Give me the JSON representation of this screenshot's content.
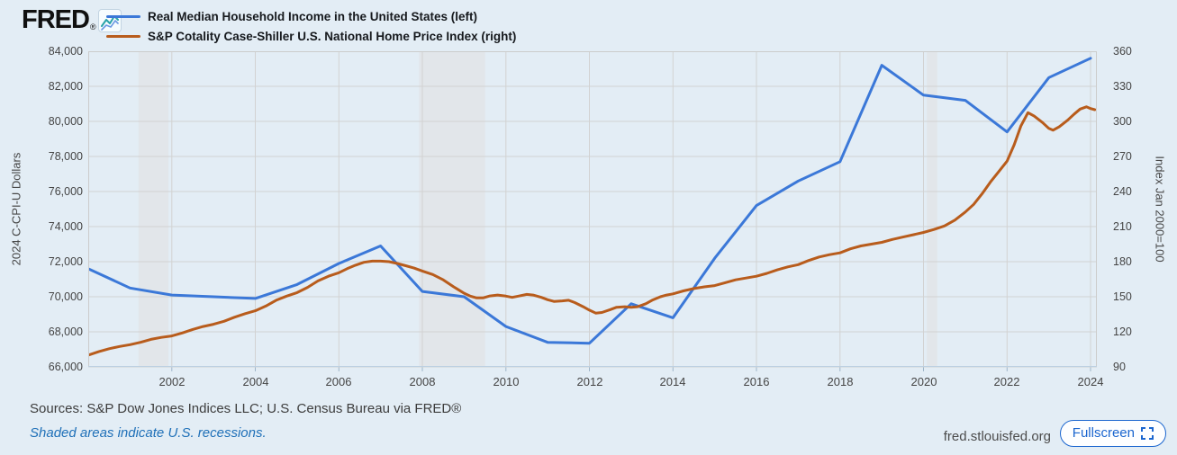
{
  "header": {
    "logo_text": "FRED",
    "registered_mark": "®",
    "logo_icon": "sparkline-icon",
    "legend": [
      {
        "label": "Real Median Household Income in the United States (left)",
        "color": "#3b78d8"
      },
      {
        "label": "S&P Cotality Case-Shiller U.S. National Home Price Index (right)",
        "color": "#b85c1c"
      }
    ]
  },
  "chart_data": {
    "type": "line",
    "title": "",
    "grid": true,
    "legend_position": "top-left",
    "background": "#ffffff",
    "gridline_color": "#d2d2d2",
    "recession_band_color": "#e2e6ea",
    "x_axis": {
      "min": 2000,
      "max": 2024.15,
      "tick_years": [
        2002,
        2004,
        2006,
        2008,
        2010,
        2012,
        2014,
        2016,
        2018,
        2020,
        2022,
        2024
      ]
    },
    "left_axis": {
      "title": "2024 C-CPI-U Dollars",
      "min": 66000,
      "max": 84000,
      "tick_values": [
        66000,
        68000,
        70000,
        72000,
        74000,
        76000,
        78000,
        80000,
        82000,
        84000
      ],
      "tick_labels": [
        "66,000",
        "68,000",
        "70,000",
        "72,000",
        "74,000",
        "76,000",
        "78,000",
        "80,000",
        "82,000",
        "84,000"
      ]
    },
    "right_axis": {
      "title": "Index Jan 2000=100",
      "min": 90,
      "max": 360,
      "tick_values": [
        90,
        120,
        150,
        180,
        210,
        240,
        270,
        300,
        330,
        360
      ],
      "tick_labels": [
        "90",
        "120",
        "150",
        "180",
        "210",
        "240",
        "270",
        "300",
        "330",
        "360"
      ]
    },
    "recessions": [
      [
        2001.2,
        2001.92
      ],
      [
        2007.92,
        2009.5
      ],
      [
        2020.08,
        2020.33
      ]
    ],
    "series": [
      {
        "name": "Real Median Household Income in the United States",
        "axis": "left",
        "color": "#3b78d8",
        "width": 3,
        "x": [
          2000,
          2001,
          2002,
          2003,
          2004,
          2005,
          2006,
          2007,
          2008,
          2009,
          2010,
          2011,
          2012,
          2013,
          2014,
          2015,
          2016,
          2017,
          2018,
          2019,
          2020,
          2021,
          2022,
          2023,
          2024
        ],
        "values": [
          71600,
          70500,
          70100,
          70000,
          69900,
          70700,
          71900,
          72900,
          70300,
          70000,
          68300,
          67400,
          67350,
          69600,
          68800,
          72200,
          75200,
          76600,
          77700,
          83200,
          81500,
          81200,
          79400,
          82500,
          83600
        ]
      },
      {
        "name": "S&P Cotality Case-Shiller U.S. National Home Price Index",
        "axis": "right",
        "color": "#b85c1c",
        "width": 3,
        "x": [
          2000.0,
          2000.25,
          2000.5,
          2000.75,
          2001.0,
          2001.25,
          2001.5,
          2001.75,
          2002.0,
          2002.25,
          2002.5,
          2002.75,
          2003.0,
          2003.25,
          2003.5,
          2003.75,
          2004.0,
          2004.25,
          2004.5,
          2004.75,
          2005.0,
          2005.25,
          2005.5,
          2005.75,
          2006.0,
          2006.2,
          2006.4,
          2006.6,
          2006.8,
          2007.0,
          2007.2,
          2007.4,
          2007.6,
          2007.8,
          2008.0,
          2008.25,
          2008.5,
          2008.75,
          2009.0,
          2009.15,
          2009.3,
          2009.45,
          2009.6,
          2009.8,
          2010.0,
          2010.15,
          2010.3,
          2010.5,
          2010.65,
          2010.85,
          2011.0,
          2011.15,
          2011.35,
          2011.5,
          2011.65,
          2011.85,
          2012.0,
          2012.15,
          2012.3,
          2012.5,
          2012.65,
          2012.85,
          2013.0,
          2013.15,
          2013.35,
          2013.5,
          2013.7,
          2013.85,
          2014.0,
          2014.25,
          2014.5,
          2014.75,
          2015.0,
          2015.25,
          2015.5,
          2015.75,
          2016.0,
          2016.25,
          2016.5,
          2016.75,
          2017.0,
          2017.25,
          2017.5,
          2017.75,
          2018.0,
          2018.25,
          2018.5,
          2018.75,
          2019.0,
          2019.25,
          2019.5,
          2019.75,
          2020.0,
          2020.25,
          2020.5,
          2020.75,
          2021.0,
          2021.2,
          2021.4,
          2021.6,
          2021.8,
          2022.0,
          2022.17,
          2022.33,
          2022.5,
          2022.65,
          2022.85,
          2023.0,
          2023.1,
          2023.25,
          2023.45,
          2023.6,
          2023.75,
          2023.9,
          2024.0,
          2024.1
        ],
        "values": [
          100,
          103,
          105.5,
          107.5,
          109,
          111,
          113.5,
          115.2,
          116.5,
          119,
          122,
          124.5,
          126.5,
          129,
          132.5,
          135.5,
          138,
          142,
          147,
          150.5,
          153.5,
          158,
          163.5,
          167.5,
          170.5,
          174,
          177,
          179.5,
          180.5,
          180.5,
          180,
          178.5,
          176.5,
          174.5,
          172,
          169,
          164.5,
          158.5,
          153,
          150.5,
          149,
          149,
          150.5,
          151.5,
          150.5,
          149.5,
          150.5,
          152,
          151.5,
          149.5,
          147.5,
          146,
          146.5,
          147,
          145,
          141.5,
          138.5,
          136,
          136.5,
          139,
          141,
          141.5,
          141,
          141.5,
          144,
          147,
          150,
          151.5,
          152.5,
          155,
          157,
          158.5,
          159.5,
          162,
          164.5,
          166,
          167.5,
          170,
          173,
          175.5,
          177.5,
          181,
          184,
          186,
          187.5,
          191,
          193.5,
          195,
          196.5,
          199,
          201,
          203,
          205,
          207.5,
          210.5,
          215.5,
          222.5,
          229,
          238,
          248,
          257,
          266,
          280,
          296,
          307.5,
          304.5,
          299,
          294,
          292.5,
          295.5,
          301,
          306,
          310.5,
          312.5,
          311,
          310
        ]
      }
    ]
  },
  "footer": {
    "sources": "Sources: S&P Dow Jones Indices LLC; U.S. Census Bureau via FRED®",
    "recession_note": "Shaded areas indicate U.S. recessions.",
    "site_link": "fred.stlouisfed.org",
    "fullscreen_label": "Fullscreen"
  }
}
